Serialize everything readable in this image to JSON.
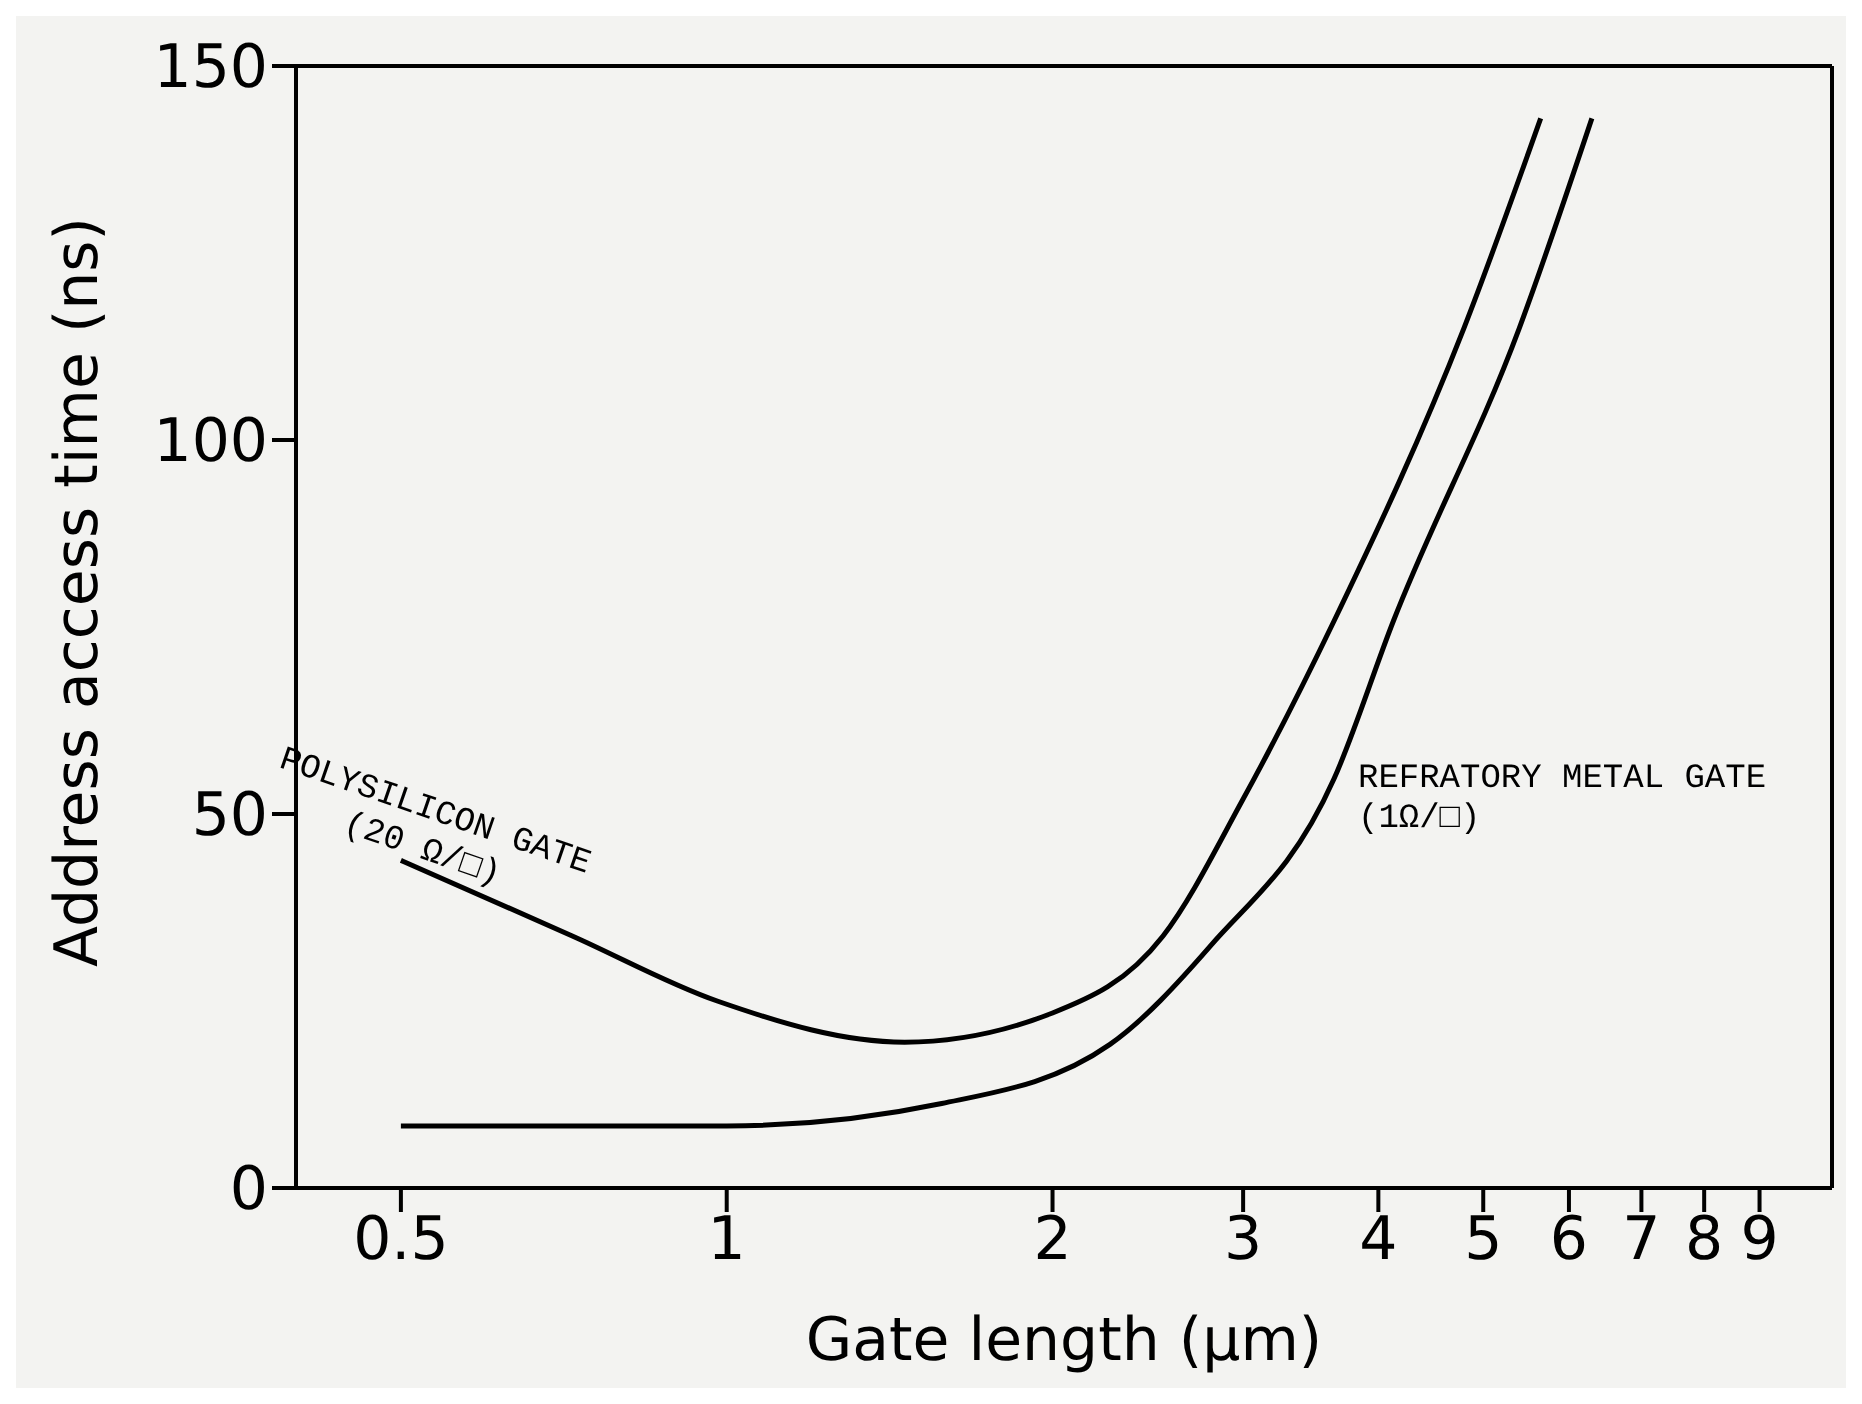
{
  "chart_data": {
    "type": "line",
    "xlabel": "Gate length (μm)",
    "ylabel": "Address access time (ns)",
    "log": "x",
    "xlim": [
      0.4,
      10.5
    ],
    "xticks": [
      0.5,
      1,
      2,
      3,
      4,
      5,
      6,
      7,
      8,
      9
    ],
    "ylim": [
      0,
      150
    ],
    "yticks": [
      0,
      50,
      100,
      150
    ],
    "legend": false,
    "marker": "none",
    "line_style": "solid",
    "series": [
      {
        "name": "POLYSILICON GATE (20 Ω/□)",
        "color": "#000000",
        "x": [
          0.5,
          0.72,
          0.98,
          1.46,
          2.0,
          2.53,
          3.0,
          3.64,
          4.8,
          5.65
        ],
        "values": [
          43.8,
          33.7,
          25,
          19.5,
          23.4,
          33.7,
          52,
          75.8,
          115,
          143
        ]
      },
      {
        "name": "REFRATORY METAL GATE (1Ω/□)",
        "color": "#000000",
        "x": [
          0.5,
          1,
          1.58,
          2.26,
          2.8,
          3.64,
          4.13,
          5.4,
          6.3
        ],
        "values": [
          8.3,
          8.3,
          11.3,
          19.2,
          32.4,
          54.7,
          75.8,
          115,
          143
        ]
      }
    ]
  }
}
